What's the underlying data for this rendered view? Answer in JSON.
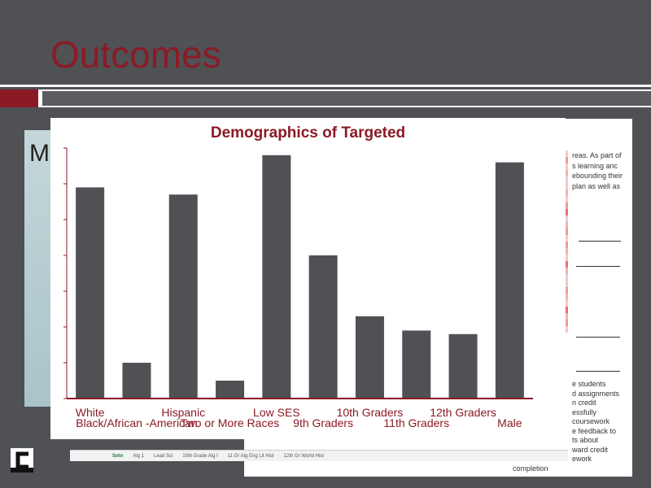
{
  "slide": {
    "title": "Outcomes"
  },
  "background_panel": {
    "partial_text": "M"
  },
  "doc": {
    "right_text": [
      "reas. As part of",
      "s learning anc",
      "ebounding their",
      "plan as well as"
    ],
    "lower_text": [
      "e students",
      "d assignments",
      "n credit",
      "essfully",
      "coursework",
      "e feedback to",
      "ts about",
      "ward credit",
      "ework"
    ],
    "footer": "completion",
    "sheet_tabs": [
      "Sotn",
      "Alg 1",
      "Lead Sci",
      "10th Grade Alg I",
      "11 Gr Alg Eng Lit Hist",
      "12th Gr World Hist"
    ],
    "strip_colors": [
      "#f6c8c8",
      "#ef9a9a",
      "#f6c8c8",
      "#f2b3b3",
      "#f6c8c8",
      "#f6c8c8",
      "#f2b3b3",
      "#f6c8c8",
      "#ef9a9a",
      "#e57373",
      "#f6c8c8",
      "#f2b3b3",
      "#ef9a9a",
      "#f6c8c8",
      "#ef9a9a",
      "#f2b3b3",
      "#f6c8c8",
      "#e57373",
      "#f2b3b3",
      "#f6c8c8",
      "#f6c8c8",
      "#ef9a9a",
      "#f2b3b3",
      "#f6c8c8",
      "#e57373",
      "#f2b3b3",
      "#ef9a9a",
      "#f6c8c8"
    ]
  },
  "chart_data": {
    "type": "bar",
    "title": "Demographics of Targeted",
    "categories": [
      "White",
      "Black/African -American",
      "Hispanic",
      "Two or More Races",
      "Low SES",
      "9th Graders",
      "10th Graders",
      "11th Graders",
      "12th Graders",
      "Male"
    ],
    "values": [
      0.59,
      0.1,
      0.57,
      0.05,
      0.68,
      0.4,
      0.23,
      0.19,
      0.18,
      0.66
    ],
    "ylim": [
      0,
      0.7
    ],
    "xlabel": "",
    "ylabel": "",
    "grid": false,
    "legend": "none",
    "colors": {
      "bar": "#4f5155",
      "axis": "#8b1a26",
      "title": "#8b1a26",
      "labels": "#8b1a26"
    }
  }
}
